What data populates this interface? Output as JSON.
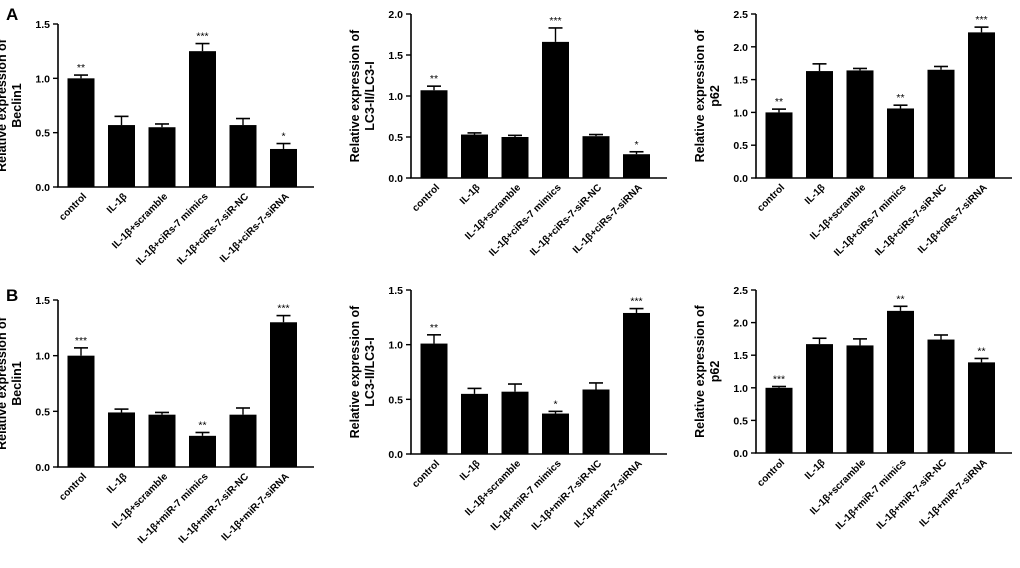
{
  "panels": [
    {
      "label": "A"
    },
    {
      "label": "B"
    }
  ],
  "chart_data": [
    {
      "type": "bar",
      "panel": "A",
      "title": "",
      "ylabel_lines": [
        "Relative  expression of",
        "Beclin1"
      ],
      "categories": [
        "control",
        "IL-1β",
        "IL-1β+scramble",
        "IL-1β+ciRs-7 mimics",
        "IL-1β+ciRs-7-siR-NC",
        "IL-1β+ciRs-7-siRNA"
      ],
      "values": [
        1.0,
        0.57,
        0.55,
        1.25,
        0.57,
        0.35
      ],
      "errors": [
        0.03,
        0.08,
        0.03,
        0.07,
        0.06,
        0.05
      ],
      "significance": [
        "**",
        "",
        "",
        "***",
        "",
        "*"
      ],
      "ylim": [
        0,
        1.5
      ],
      "yticks": [
        0.0,
        0.5,
        1.0,
        1.5
      ],
      "ytick_labels": [
        "0.0",
        "0.5",
        "1.0",
        "1.5"
      ]
    },
    {
      "type": "bar",
      "panel": "A",
      "title": "",
      "ylabel_lines": [
        "Relative  expression of",
        "LC3-II/LC3-I"
      ],
      "categories": [
        "control",
        "IL-1β",
        "IL-1β+scramble",
        "IL-1β+ciRs-7 mimics",
        "IL-1β+ciRs-7-siR-NC",
        "IL-1β+ciRs-7-siRNA"
      ],
      "values": [
        1.07,
        0.53,
        0.5,
        1.66,
        0.51,
        0.29
      ],
      "errors": [
        0.05,
        0.02,
        0.02,
        0.17,
        0.02,
        0.03
      ],
      "significance": [
        "**",
        "",
        "",
        "***",
        "",
        "*"
      ],
      "ylim": [
        0,
        2.0
      ],
      "yticks": [
        0.0,
        0.5,
        1.0,
        1.5,
        2.0
      ],
      "ytick_labels": [
        "0.0",
        "0.5",
        "1.0",
        "1.5",
        "2.0"
      ]
    },
    {
      "type": "bar",
      "panel": "A",
      "title": "",
      "ylabel_lines": [
        "Relative  expression of",
        "p62"
      ],
      "categories": [
        "control",
        "IL-1β",
        "IL-1β+scramble",
        "IL-1β+ciRs-7 mimics",
        "IL-1β+ciRs-7-siR-NC",
        "IL-1β+ciRs-7-siRNA"
      ],
      "values": [
        1.0,
        1.63,
        1.64,
        1.06,
        1.65,
        2.22
      ],
      "errors": [
        0.05,
        0.11,
        0.03,
        0.05,
        0.05,
        0.08
      ],
      "significance": [
        "**",
        "",
        "",
        "**",
        "",
        "***"
      ],
      "ylim": [
        0,
        2.5
      ],
      "yticks": [
        0.0,
        0.5,
        1.0,
        1.5,
        2.0,
        2.5
      ],
      "ytick_labels": [
        "0.0",
        "0.5",
        "1.0",
        "1.5",
        "2.0",
        "2.5"
      ]
    },
    {
      "type": "bar",
      "panel": "B",
      "title": "",
      "ylabel_lines": [
        "Relative  expression of",
        "Beclin1"
      ],
      "categories": [
        "control",
        "IL-1β",
        "IL-1β+scramble",
        "IL-1β+miR-7 mimics",
        "IL-1β+miR-7-siR-NC",
        "IL-1β+miR-7-siRNA"
      ],
      "values": [
        1.0,
        0.49,
        0.47,
        0.28,
        0.47,
        1.3
      ],
      "errors": [
        0.07,
        0.03,
        0.02,
        0.03,
        0.06,
        0.06
      ],
      "significance": [
        "***",
        "",
        "",
        "**",
        "",
        "***"
      ],
      "ylim": [
        0,
        1.5
      ],
      "yticks": [
        0.0,
        0.5,
        1.0,
        1.5
      ],
      "ytick_labels": [
        "0.0",
        "0.5",
        "1.0",
        "1.5"
      ]
    },
    {
      "type": "bar",
      "panel": "B",
      "title": "",
      "ylabel_lines": [
        "Relative  expression of",
        "LC3-II/LC3-I"
      ],
      "categories": [
        "control",
        "IL-1β",
        "IL-1β+scramble",
        "IL-1β+miR-7 mimics",
        "IL-1β+miR-7-siR-NC",
        "IL-1β+miR-7-siRNA"
      ],
      "values": [
        1.01,
        0.55,
        0.57,
        0.37,
        0.59,
        1.29
      ],
      "errors": [
        0.08,
        0.05,
        0.07,
        0.02,
        0.06,
        0.04
      ],
      "significance": [
        "**",
        "",
        "",
        "*",
        "",
        "***"
      ],
      "ylim": [
        0,
        1.5
      ],
      "yticks": [
        0.0,
        0.5,
        1.0,
        1.5
      ],
      "ytick_labels": [
        "0.0",
        "0.5",
        "1.0",
        "1.5"
      ]
    },
    {
      "type": "bar",
      "panel": "B",
      "title": "",
      "ylabel_lines": [
        "Relative  expression of",
        "p62"
      ],
      "categories": [
        "control",
        "IL-1β",
        "IL-1β+scramble",
        "IL-1β+miR-7 mimics",
        "IL-1β+miR-7-siR-NC",
        "IL-1β+miR-7-siRNA"
      ],
      "values": [
        1.0,
        1.67,
        1.65,
        2.18,
        1.74,
        1.39
      ],
      "errors": [
        0.02,
        0.09,
        0.1,
        0.07,
        0.07,
        0.06
      ],
      "significance": [
        "***",
        "",
        "",
        "**",
        "",
        "**"
      ],
      "ylim": [
        0,
        2.5
      ],
      "yticks": [
        0.0,
        0.5,
        1.0,
        1.5,
        2.0,
        2.5
      ],
      "ytick_labels": [
        "0.0",
        "0.5",
        "1.0",
        "1.5",
        "2.0",
        "2.5"
      ]
    }
  ]
}
